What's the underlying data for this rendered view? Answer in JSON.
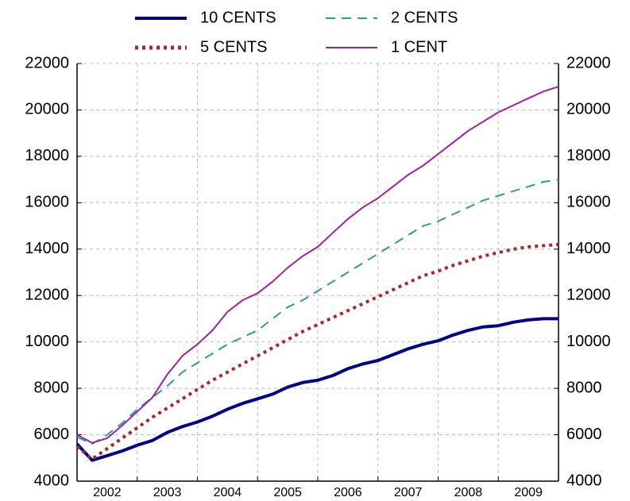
{
  "chart_data": {
    "type": "line",
    "categories": [
      "2002",
      "2003",
      "2004",
      "2005",
      "2006",
      "2007",
      "2008",
      "2009"
    ],
    "x": [
      2002,
      2002.25,
      2002.5,
      2002.75,
      2003,
      2003.25,
      2003.5,
      2003.75,
      2004,
      2004.25,
      2004.5,
      2004.75,
      2005,
      2005.25,
      2005.5,
      2005.75,
      2006,
      2006.25,
      2006.5,
      2006.75,
      2007,
      2007.25,
      2007.5,
      2007.75,
      2008,
      2008.25,
      2008.5,
      2008.75,
      2009,
      2009.25,
      2009.5,
      2009.75,
      2010
    ],
    "xlim": [
      2002,
      2010
    ],
    "ylim": [
      4000,
      22000
    ],
    "yticks": [
      4000,
      6000,
      8000,
      10000,
      12000,
      14000,
      16000,
      18000,
      20000,
      22000
    ],
    "grid": true,
    "series": [
      {
        "name": "10 CENTS",
        "color": "#00008b",
        "dash": "solid",
        "width": 4,
        "values": [
          5600,
          4900,
          5100,
          5300,
          5550,
          5750,
          6100,
          6350,
          6550,
          6800,
          7100,
          7350,
          7550,
          7750,
          8050,
          8250,
          8350,
          8550,
          8850,
          9050,
          9200,
          9450,
          9700,
          9900,
          10050,
          10300,
          10500,
          10650,
          10700,
          10850,
          10950,
          11000,
          11000
        ]
      },
      {
        "name": "5 CENTS",
        "color": "#a52a2a",
        "dash": "dotted",
        "width": 4,
        "values": [
          5500,
          4950,
          5400,
          5850,
          6300,
          6750,
          7150,
          7550,
          7950,
          8350,
          8700,
          9050,
          9400,
          9750,
          10100,
          10450,
          10750,
          11050,
          11350,
          11650,
          11950,
          12250,
          12550,
          12850,
          13050,
          13300,
          13500,
          13700,
          13850,
          14000,
          14100,
          14150,
          14200
        ]
      },
      {
        "name": "2 CENTS",
        "color": "#2e9a9a",
        "dash": "dashed",
        "width": 2,
        "values": [
          5900,
          5600,
          6000,
          6500,
          7100,
          7600,
          8100,
          8700,
          9100,
          9500,
          9900,
          10200,
          10500,
          11000,
          11500,
          11800,
          12200,
          12600,
          13000,
          13400,
          13800,
          14200,
          14600,
          15000,
          15200,
          15500,
          15800,
          16100,
          16300,
          16500,
          16700,
          16900,
          17000
        ]
      },
      {
        "name": "1 CENT",
        "color": "#a020a0",
        "dash": "solid",
        "width": 2,
        "values": [
          6000,
          5650,
          5850,
          6400,
          7000,
          7600,
          8600,
          9400,
          9900,
          10500,
          11300,
          11800,
          12100,
          12600,
          13200,
          13700,
          14100,
          14700,
          15300,
          15800,
          16200,
          16700,
          17200,
          17600,
          18100,
          18600,
          19100,
          19500,
          19900,
          20200,
          20500,
          20800,
          21000
        ]
      }
    ],
    "legend": "top"
  }
}
